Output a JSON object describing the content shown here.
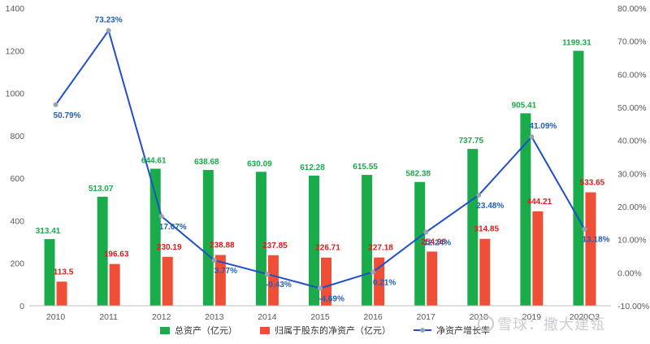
{
  "chart_data": {
    "type": "bar",
    "categories": [
      "2010",
      "2011",
      "2012",
      "2013",
      "2014",
      "2015",
      "2016",
      "2017",
      "2018",
      "2019",
      "2020Q3"
    ],
    "series": [
      {
        "name": "总资产（亿元）",
        "kind": "bar",
        "axis": "left",
        "color": "#1aab4b",
        "values": [
          313.41,
          513.07,
          644.61,
          638.68,
          630.09,
          612.28,
          615.55,
          582.38,
          737.75,
          905.41,
          1199.31
        ],
        "labels": [
          "313.41",
          "513.07",
          "644.61",
          "638.68",
          "630.09",
          "612.28",
          "615.55",
          "582.38",
          "737.75",
          "905.41",
          "1199.31"
        ],
        "label_color": "#1aab4b"
      },
      {
        "name": "归属于股东的净资产（亿元）",
        "kind": "bar",
        "axis": "left",
        "color": "#ef4f36",
        "values": [
          113.5,
          196.63,
          230.19,
          238.88,
          237.85,
          226.71,
          227.18,
          254.98,
          314.85,
          444.21,
          533.65
        ],
        "labels": [
          "113.5",
          "196.63",
          "230.19",
          "238.88",
          "237.85",
          "226.71",
          "227.18",
          "254.98",
          "314.85",
          "444.21",
          "533.65"
        ],
        "label_color": "#e11a1a"
      },
      {
        "name": "净资产增长率",
        "kind": "line",
        "axis": "right",
        "color": "#1f4fc9",
        "values": [
          50.79,
          73.23,
          17.07,
          3.77,
          -0.43,
          -4.69,
          0.21,
          12.24,
          23.48,
          41.09,
          13.18
        ],
        "labels": [
          "50.79%",
          "73.23%",
          "17.07%",
          "3.77%",
          "-0.43%",
          "-4.69%",
          "0.21%",
          "12.24%",
          "23.48%",
          "41.09%",
          "13.18%"
        ],
        "label_color": "#1f5fb8"
      }
    ],
    "y_left": {
      "ylim": [
        0,
        1400
      ],
      "ticks": [
        0,
        200,
        400,
        600,
        800,
        1000,
        1200,
        1400
      ],
      "tick_labels": [
        "0",
        "200",
        "400",
        "600",
        "800",
        "1000",
        "1200",
        "1400"
      ]
    },
    "y_right": {
      "ylim": [
        -10,
        80
      ],
      "ticks": [
        -10,
        0,
        10,
        20,
        30,
        40,
        50,
        60,
        70,
        80
      ],
      "tick_labels": [
        "-10.00%",
        "0.00%",
        "10.00%",
        "20.00%",
        "30.00%",
        "40.00%",
        "50.00%",
        "60.00%",
        "70.00%",
        "80.00%"
      ]
    },
    "grid": false,
    "legend": "bottom",
    "title": "",
    "xlabel": "",
    "ylabel": ""
  },
  "legend": {
    "items": [
      {
        "label": "总资产（亿元）",
        "color": "#1aab4b"
      },
      {
        "label": "归属于股东的净资产（亿元）",
        "color": "#ef4f36"
      },
      {
        "label": "净资产增长率",
        "color": "#1f4fc9"
      }
    ]
  },
  "watermark": {
    "text": "雪球：撒大建瓴"
  }
}
